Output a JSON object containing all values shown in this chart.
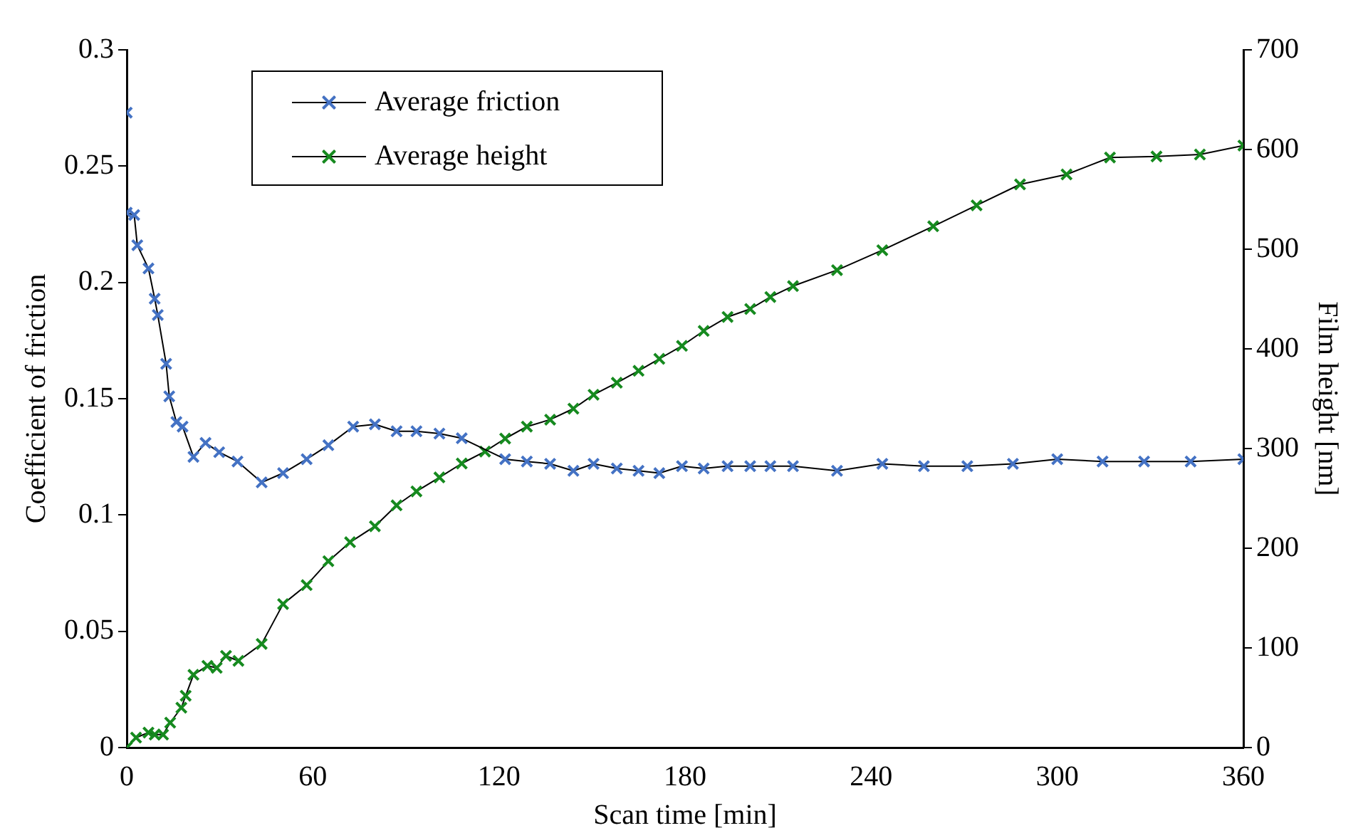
{
  "chart_data": {
    "type": "line",
    "xlabel": "Scan time [min]",
    "ylabel": "Coefficient of friction",
    "y2label": "Film height [nm]",
    "xlim": [
      0,
      360
    ],
    "xticks": [
      0,
      60,
      120,
      180,
      240,
      300,
      360
    ],
    "ylim": [
      0,
      0.3
    ],
    "yticks": [
      0,
      0.05,
      0.1,
      0.15,
      0.2,
      0.25,
      0.3
    ],
    "y2lim": [
      0,
      700
    ],
    "y2ticks": [
      0,
      100,
      200,
      300,
      400,
      500,
      600,
      700
    ],
    "grid": false,
    "legend": "top left",
    "marker": "cross",
    "line_style": "solid",
    "series": [
      {
        "name": "Average friction",
        "color": "#4472c4",
        "x": [
          0,
          0,
          2.4,
          3.4,
          7,
          9,
          10,
          12.7,
          13.7,
          16,
          18,
          21.5,
          25.4,
          29.8,
          35.7,
          43.5,
          50.4,
          58,
          65,
          73,
          80,
          87,
          93.4,
          100.8,
          108,
          122,
          129,
          136.5,
          144,
          150.5,
          158,
          165,
          171.7,
          179,
          186,
          193.7,
          201,
          207.5,
          214.8,
          229,
          243.6,
          257,
          271,
          285.7,
          300,
          314.6,
          328,
          343,
          360
        ],
        "values": [
          0.273,
          0.23,
          0.229,
          0.216,
          0.206,
          0.193,
          0.186,
          0.165,
          0.151,
          0.14,
          0.138,
          0.125,
          0.131,
          0.127,
          0.123,
          0.114,
          0.118,
          0.124,
          0.13,
          0.138,
          0.139,
          0.136,
          0.136,
          0.135,
          0.133,
          0.124,
          0.123,
          0.122,
          0.119,
          0.122,
          0.12,
          0.119,
          0.118,
          0.121,
          0.12,
          0.121,
          0.121,
          0.121,
          0.121,
          0.119,
          0.122,
          0.121,
          0.121,
          0.122,
          0.124,
          0.123,
          0.123,
          0.123,
          0.124
        ]
      },
      {
        "name": "Average height",
        "color": "#168a1f",
        "axis": "y2",
        "x": [
          0,
          3,
          7,
          9,
          11.7,
          14,
          17.6,
          19,
          21.5,
          26,
          29,
          32,
          36,
          43.5,
          50.4,
          58,
          65,
          72,
          80,
          87,
          93.4,
          100.8,
          108,
          115.5,
          122,
          129,
          136.5,
          144,
          150.5,
          158,
          165,
          171.7,
          179,
          186,
          193.7,
          201,
          207.5,
          214.8,
          229,
          243.6,
          260,
          274,
          288,
          303,
          317,
          332,
          346,
          360
        ],
        "values": [
          0,
          10,
          15,
          13,
          13,
          25,
          40,
          52,
          73,
          82,
          80,
          92,
          87,
          104,
          144,
          163,
          187,
          206,
          222,
          243,
          257,
          271,
          285,
          297,
          310,
          322,
          329,
          340,
          354,
          366,
          378,
          390,
          403,
          418,
          432,
          440,
          452,
          463,
          479,
          499,
          523,
          544,
          565,
          575,
          592,
          593,
          595,
          604
        ]
      }
    ]
  }
}
